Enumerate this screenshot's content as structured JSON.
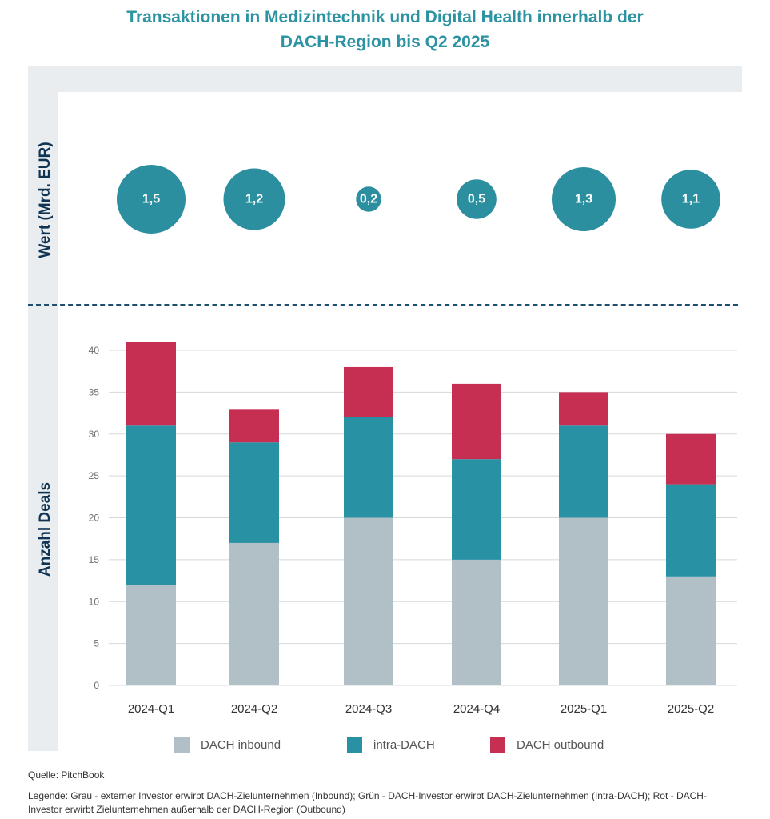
{
  "title_line1": "Transaktionen in Medizintechnik und Digital Health innerhalb der",
  "title_line2": "DACH-Region bis Q2 2025",
  "source": "Quelle: PitchBook",
  "note": "Legende: Grau - externer Investor erwirbt DACH-Zielunternehmen (Inbound); Grün - DACH-Investor erwirbt DACH-Zielunternehmen (Intra-DACH); Rot - DACH-Investor erwirbt Zielunternehmen außerhalb der DACH-Region (Outbound)",
  "chart_data": [
    {
      "type": "bubble",
      "ylabel": "Wert (Mrd. EUR)",
      "categories": [
        "2024-Q1",
        "2024-Q2",
        "2024-Q3",
        "2024-Q4",
        "2025-Q1",
        "2025-Q2"
      ],
      "values": [
        1.5,
        1.2,
        0.2,
        0.5,
        1.3,
        1.1
      ],
      "labels": [
        "1,5",
        "1,2",
        "0,2",
        "0,5",
        "1,3",
        "1,1"
      ],
      "color": "#2b8fa0"
    },
    {
      "type": "bar",
      "stacked": true,
      "ylabel": "Anzahl Deals",
      "categories": [
        "2024-Q1",
        "2024-Q2",
        "2024-Q3",
        "2024-Q4",
        "2025-Q1",
        "2025-Q2"
      ],
      "ylim": [
        0,
        40
      ],
      "yticks": [
        0,
        5,
        10,
        15,
        20,
        25,
        30,
        35,
        40
      ],
      "grid": true,
      "legend_position": "bottom",
      "series": [
        {
          "name": "DACH inbound",
          "color": "#b1c0c7",
          "values": [
            12,
            17,
            20,
            15,
            20,
            13
          ]
        },
        {
          "name": "intra-DACH",
          "color": "#2891a3",
          "values": [
            19,
            12,
            12,
            12,
            11,
            11
          ]
        },
        {
          "name": "DACH outbound",
          "color": "#c72f52",
          "values": [
            10,
            4,
            6,
            9,
            4,
            6
          ]
        }
      ]
    }
  ]
}
